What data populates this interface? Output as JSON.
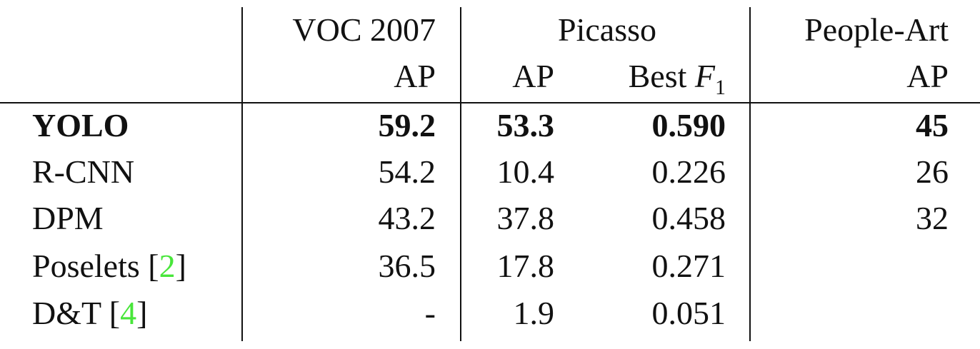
{
  "columns": {
    "voc": {
      "group": "VOC 2007",
      "metric": "AP"
    },
    "picasso": {
      "group": "Picasso",
      "metric_ap": "AP",
      "metric_f1_prefix": "Best ",
      "metric_f1_var": "F",
      "metric_f1_sub": "1"
    },
    "people_art": {
      "group": "People-Art",
      "metric": "AP"
    }
  },
  "rows": [
    {
      "method": "YOLO",
      "ref": "",
      "voc_ap": "59.2",
      "picasso_ap": "53.3",
      "picasso_f1": "0.590",
      "people_art_ap": "45",
      "bold": true
    },
    {
      "method": "R-CNN",
      "ref": "",
      "voc_ap": "54.2",
      "picasso_ap": "10.4",
      "picasso_f1": "0.226",
      "people_art_ap": "26"
    },
    {
      "method": "DPM",
      "ref": "",
      "voc_ap": "43.2",
      "picasso_ap": "37.8",
      "picasso_f1": "0.458",
      "people_art_ap": "32"
    },
    {
      "method": "Poselets ",
      "ref": "2",
      "voc_ap": "36.5",
      "picasso_ap": "17.8",
      "picasso_f1": "0.271",
      "people_art_ap": ""
    },
    {
      "method": "D&T ",
      "ref": "4",
      "voc_ap": "-",
      "picasso_ap": "1.9",
      "picasso_f1": "0.051",
      "people_art_ap": ""
    }
  ]
}
